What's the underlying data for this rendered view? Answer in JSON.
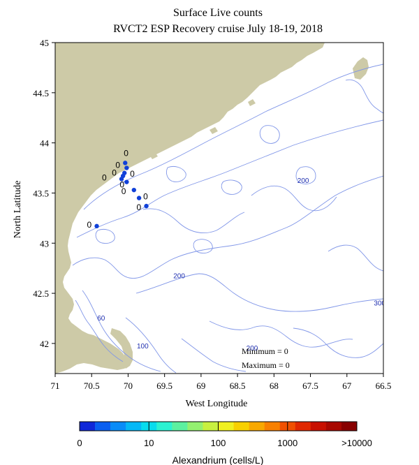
{
  "title": {
    "line1": "Surface Live counts",
    "line2": "RVCT2 ESP Recovery cruise July 18-19, 2018"
  },
  "axes": {
    "xlabel": "West Longitude",
    "ylabel": "North Latitude",
    "x_ticks": [
      "71",
      "70.5",
      "70",
      "69.5",
      "69",
      "68.5",
      "68",
      "67.5",
      "67",
      "66.5"
    ],
    "y_ticks": [
      "45",
      "44.5",
      "44",
      "43.5",
      "43",
      "42.5",
      "42"
    ],
    "x_range": [
      71,
      66.5
    ],
    "y_range": [
      41.7,
      45
    ]
  },
  "stats": {
    "minimum": "Minimum = 0",
    "maximum": "Maximum = 0"
  },
  "contour_labels": [
    {
      "text": "200",
      "lon": 67.6,
      "lat": 43.6
    },
    {
      "text": "200",
      "lon": 69.3,
      "lat": 42.65
    },
    {
      "text": "200",
      "lon": 68.3,
      "lat": 41.93
    },
    {
      "text": "300",
      "lon": 66.55,
      "lat": 42.38
    },
    {
      "text": "60",
      "lon": 70.37,
      "lat": 42.23
    },
    {
      "text": "100",
      "lon": 69.8,
      "lat": 41.95
    }
  ],
  "stations": [
    {
      "lon": 70.04,
      "lat": 43.8,
      "value": "0",
      "label_dx": -2,
      "label_dy": -10
    },
    {
      "lon": 70.02,
      "lat": 43.75,
      "value": "0",
      "label_dx": -16,
      "label_dy": 0
    },
    {
      "lon": 70.05,
      "lat": 43.7,
      "value": "0",
      "label_dx": -18,
      "label_dy": 4
    },
    {
      "lon": 70.07,
      "lat": 43.67,
      "value": "0",
      "label_dx": 10,
      "label_dy": 1
    },
    {
      "lon": 70.09,
      "lat": 43.64,
      "value": "0",
      "label_dx": -28,
      "label_dy": 2
    },
    {
      "lon": 70.02,
      "lat": 43.61,
      "value": "0",
      "label_dx": -10,
      "label_dy": 8
    },
    {
      "lon": 69.92,
      "lat": 43.53,
      "value": "0",
      "label_dx": -18,
      "label_dy": 6
    },
    {
      "lon": 69.85,
      "lat": 43.45,
      "value": "0",
      "label_dx": 6,
      "label_dy": 2
    },
    {
      "lon": 69.75,
      "lat": 43.37,
      "value": "0",
      "label_dx": -14,
      "label_dy": 6
    },
    {
      "lon": 70.43,
      "lat": 43.17,
      "value": "0",
      "label_dx": -14,
      "label_dy": 2
    }
  ],
  "colorbar": {
    "title": "Alexandrium (cells/L)",
    "tick_labels": [
      "0",
      "10",
      "100",
      "1000",
      ">10000"
    ],
    "colors": [
      "#1028d8",
      "#0a5ff0",
      "#0a8cf8",
      "#06b8f6",
      "#08dcee",
      "#2cf2d2",
      "#5cf0a0",
      "#94f070",
      "#c8f040",
      "#f0f020",
      "#f8d000",
      "#f8a800",
      "#f88000",
      "#f05000",
      "#e02800",
      "#c81000",
      "#a80800",
      "#880000"
    ]
  },
  "colors": {
    "land": "#cdcaa7",
    "contour": "#8096e8",
    "station": "#1040d8",
    "label_blue": "#2030b0"
  }
}
